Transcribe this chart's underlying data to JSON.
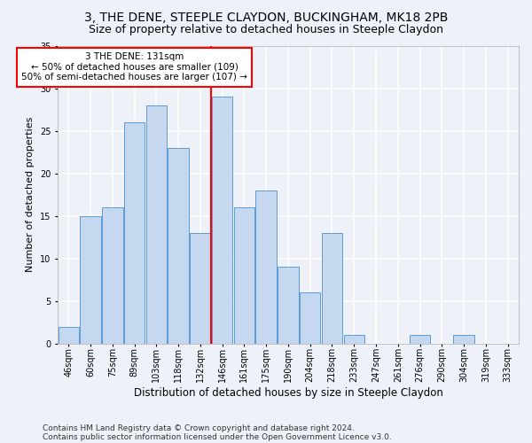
{
  "title": "3, THE DENE, STEEPLE CLAYDON, BUCKINGHAM, MK18 2PB",
  "subtitle": "Size of property relative to detached houses in Steeple Claydon",
  "xlabel": "Distribution of detached houses by size in Steeple Claydon",
  "ylabel": "Number of detached properties",
  "categories": [
    "46sqm",
    "60sqm",
    "75sqm",
    "89sqm",
    "103sqm",
    "118sqm",
    "132sqm",
    "146sqm",
    "161sqm",
    "175sqm",
    "190sqm",
    "204sqm",
    "218sqm",
    "233sqm",
    "247sqm",
    "261sqm",
    "276sqm",
    "290sqm",
    "304sqm",
    "319sqm",
    "333sqm"
  ],
  "values": [
    2,
    15,
    16,
    26,
    28,
    23,
    13,
    29,
    16,
    18,
    9,
    6,
    13,
    1,
    0,
    0,
    1,
    0,
    1,
    0,
    0
  ],
  "bar_color": "#c5d8f0",
  "bar_edge_color": "#5b9bd5",
  "vline_x_idx": 6,
  "vline_color": "red",
  "annotation_text": "3 THE DENE: 131sqm\n← 50% of detached houses are smaller (109)\n50% of semi-detached houses are larger (107) →",
  "annotation_box_color": "white",
  "annotation_box_edge": "red",
  "ylim": [
    0,
    35
  ],
  "yticks": [
    0,
    5,
    10,
    15,
    20,
    25,
    30,
    35
  ],
  "footer_line1": "Contains HM Land Registry data © Crown copyright and database right 2024.",
  "footer_line2": "Contains public sector information licensed under the Open Government Licence v3.0.",
  "background_color": "#eef2f8",
  "grid_color": "white",
  "title_fontsize": 10,
  "subtitle_fontsize": 9,
  "xlabel_fontsize": 8.5,
  "ylabel_fontsize": 8,
  "tick_fontsize": 7,
  "annotation_fontsize": 7.5,
  "footer_fontsize": 6.5
}
